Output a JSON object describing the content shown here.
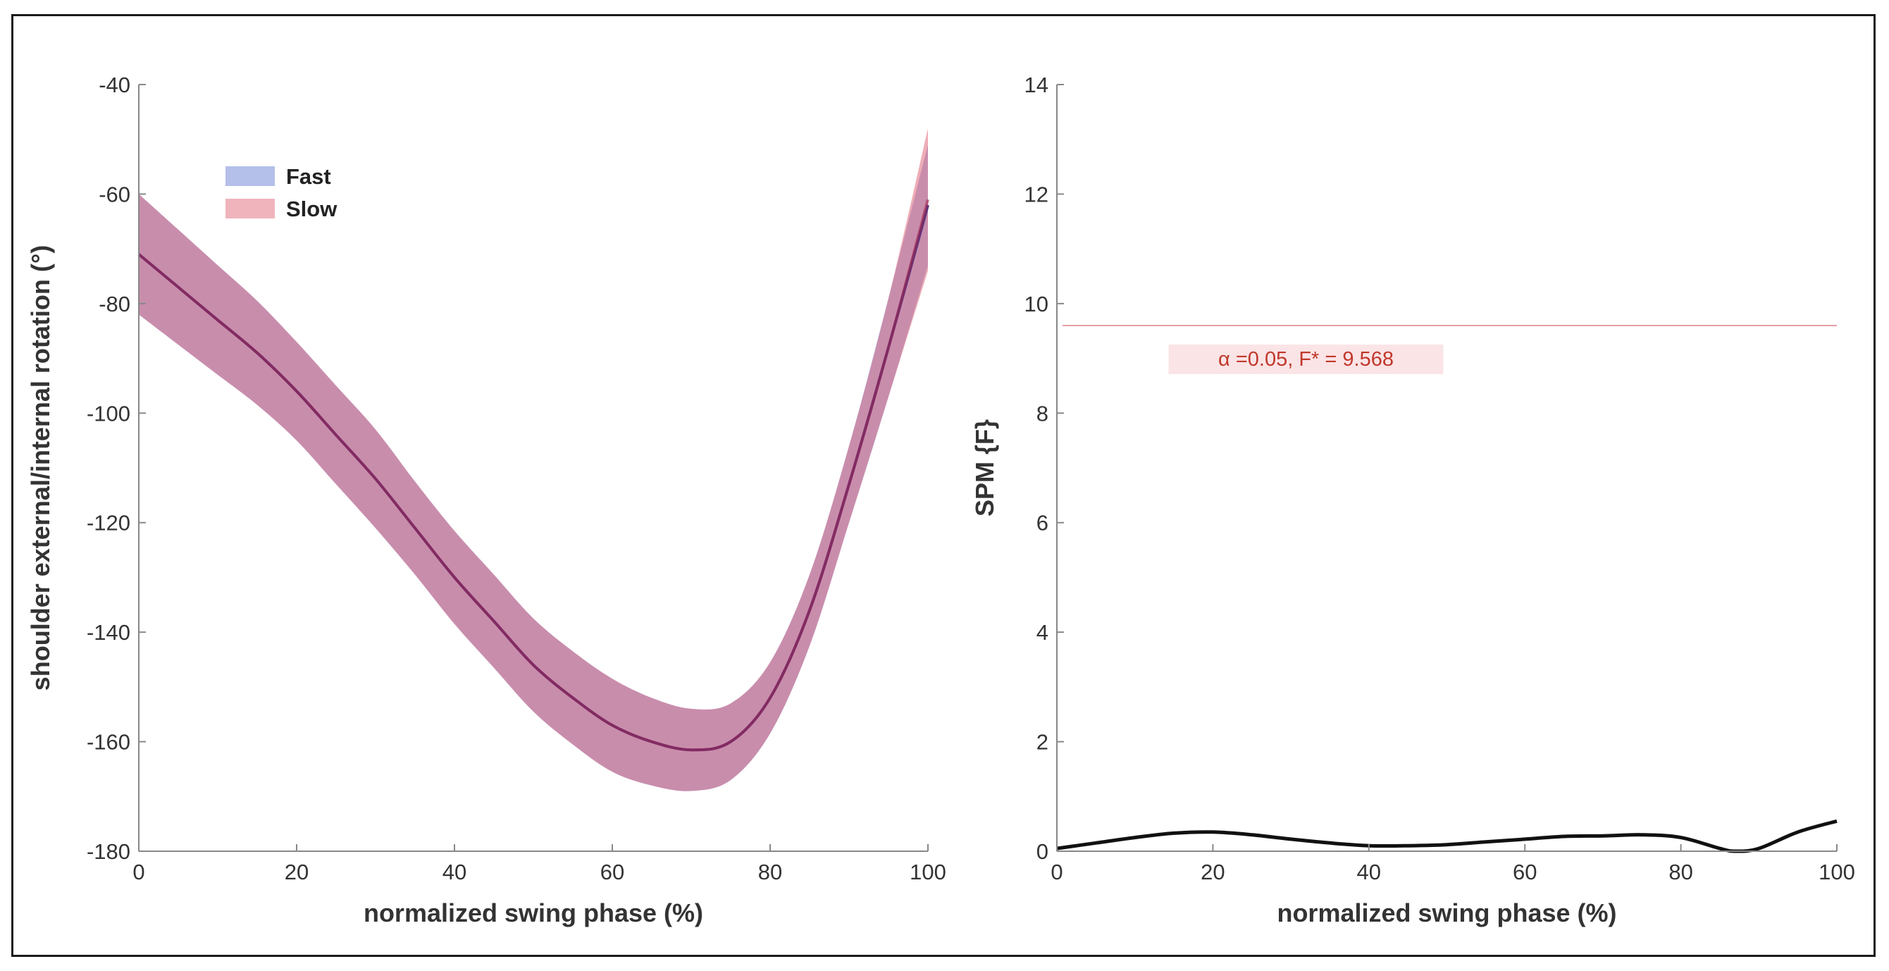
{
  "chart_data": [
    {
      "type": "line",
      "xlabel": "normalized swing phase (%)",
      "ylabel": "shoulder external/internal rotation (°)",
      "xlim": [
        0,
        100
      ],
      "ylim": [
        -180,
        -40
      ],
      "xticks": [
        "0",
        "20",
        "40",
        "60",
        "80",
        "100"
      ],
      "yticks": [
        "-180",
        "-160",
        "-140",
        "-120",
        "-100",
        "-80",
        "-60",
        "-40"
      ],
      "grid": false,
      "legend": "top-left",
      "x": [
        0,
        5,
        10,
        15,
        20,
        25,
        30,
        35,
        40,
        45,
        50,
        55,
        60,
        65,
        70,
        75,
        80,
        85,
        90,
        95,
        100
      ],
      "series": [
        {
          "name": "Fast",
          "color": "#6a7fd6",
          "mean": [
            -71,
            -77,
            -83,
            -89,
            -96,
            -104,
            -112,
            -121,
            -130,
            -138,
            -146,
            -152,
            -157,
            -160,
            -161.5,
            -160,
            -152,
            -136,
            -113,
            -88,
            -62
          ],
          "sd": [
            11,
            10.5,
            10,
            9.5,
            9,
            9,
            9,
            8.5,
            8.5,
            8.5,
            8.5,
            8.5,
            8.5,
            8,
            7.5,
            7,
            6.5,
            6.5,
            7,
            9,
            11
          ]
        },
        {
          "name": "Slow",
          "color": "#e06a7a",
          "mean": [
            -71,
            -77,
            -83,
            -89,
            -96,
            -104,
            -112,
            -121,
            -130,
            -138,
            -146,
            -152,
            -157,
            -160,
            -161.5,
            -160,
            -152,
            -136,
            -113,
            -88,
            -61
          ],
          "sd": [
            11,
            10.5,
            10,
            9.5,
            9,
            9,
            9,
            8.5,
            8.5,
            8.5,
            8.5,
            8.5,
            8.5,
            8,
            7.5,
            7,
            6.5,
            6.5,
            7,
            9,
            13
          ]
        }
      ]
    },
    {
      "type": "line",
      "xlabel": "normalized swing phase (%)",
      "ylabel": "SPM {F}",
      "xlim": [
        0,
        100
      ],
      "ylim": [
        0,
        14
      ],
      "xticks": [
        "0",
        "20",
        "40",
        "60",
        "80",
        "100"
      ],
      "yticks": [
        "0",
        "2",
        "4",
        "6",
        "8",
        "10",
        "12",
        "14"
      ],
      "grid": false,
      "threshold": 9.6,
      "threshold_label": "α =0.05,   F* = 9.568",
      "x": [
        0,
        5,
        10,
        15,
        20,
        25,
        30,
        35,
        40,
        45,
        50,
        55,
        60,
        65,
        70,
        75,
        80,
        85,
        87,
        90,
        95,
        100
      ],
      "series": [
        {
          "name": "",
          "values": [
            0.05,
            0.15,
            0.25,
            0.33,
            0.35,
            0.3,
            0.22,
            0.15,
            0.1,
            0.1,
            0.12,
            0.17,
            0.22,
            0.27,
            0.28,
            0.3,
            0.25,
            0.05,
            0.0,
            0.05,
            0.35,
            0.55
          ]
        }
      ]
    }
  ]
}
